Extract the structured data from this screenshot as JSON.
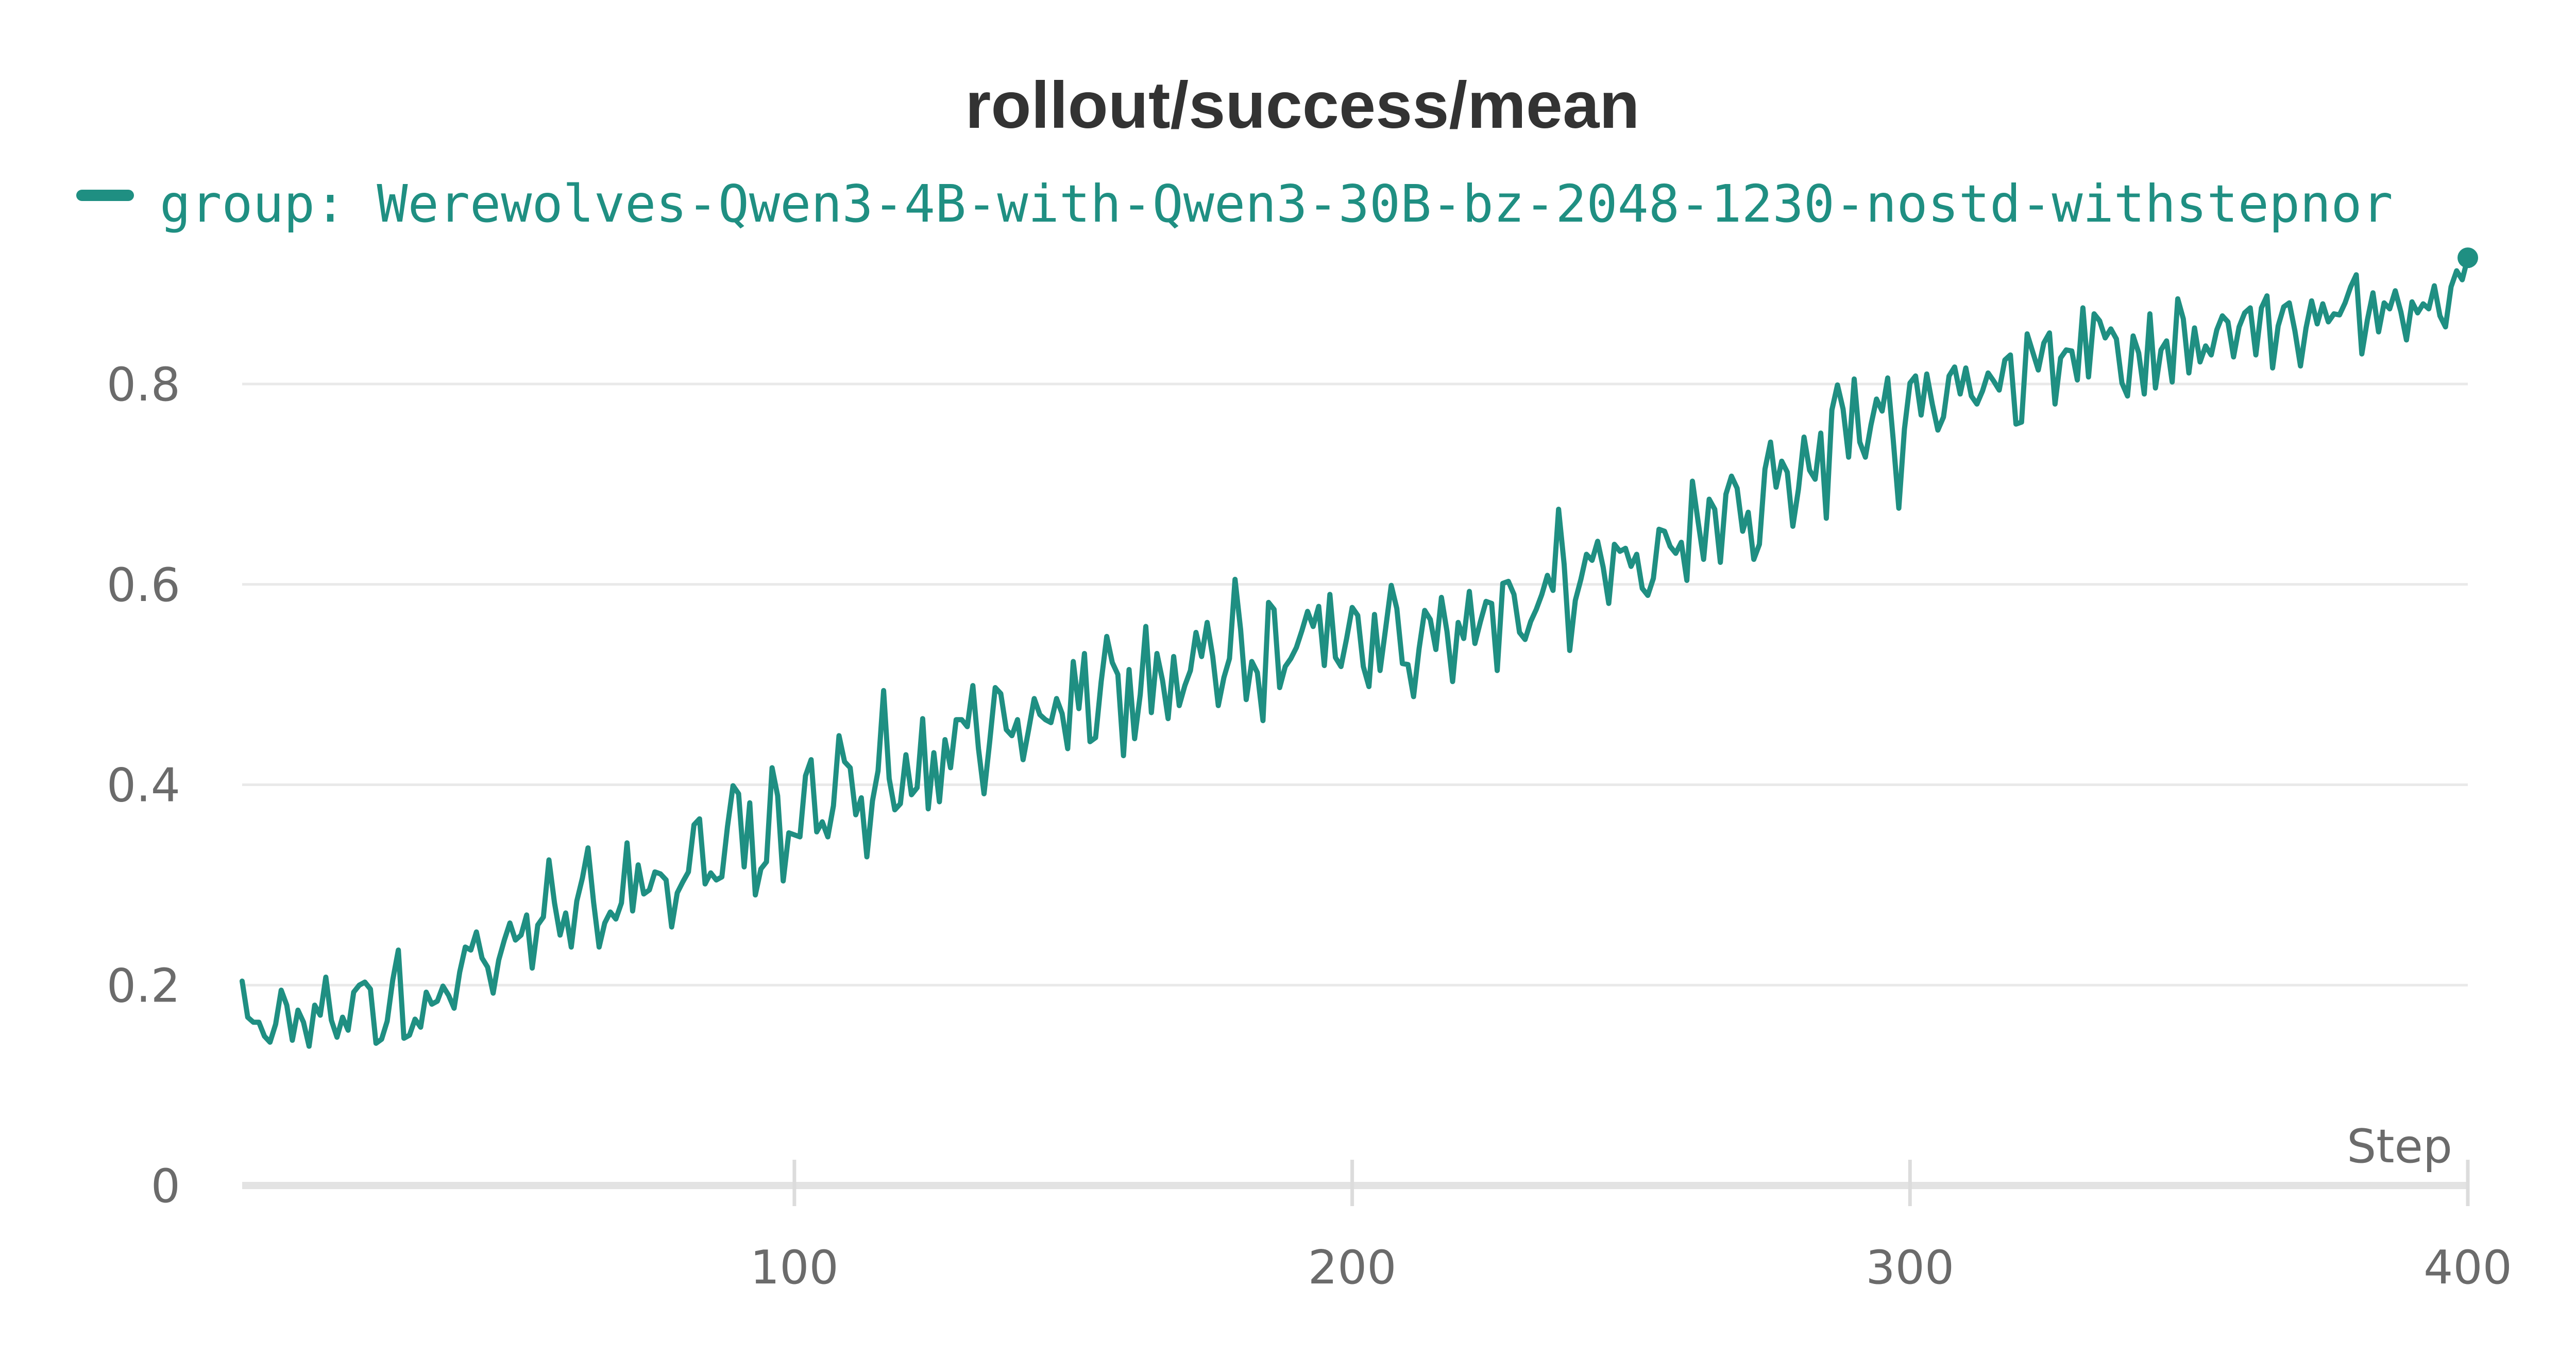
{
  "colors": {
    "series": "#1f8f82",
    "grid": "#e9e9e9",
    "text": "#6b6b6b",
    "title": "#333333"
  },
  "legend": {
    "icon": "legend-line-icon"
  },
  "chart_data": {
    "type": "line",
    "title": "rollout/success/mean",
    "xlabel": "Step",
    "ylabel": "",
    "xlim": [
      1,
      400
    ],
    "ylim": [
      0,
      0.92
    ],
    "x_ticks": [
      100,
      200,
      300,
      400
    ],
    "y_ticks": [
      0,
      0.2,
      0.4,
      0.6,
      0.8
    ],
    "x_tick_labels": [
      "100",
      "200",
      "300",
      "400"
    ],
    "y_tick_labels": [
      "0",
      "0.2",
      "0.4",
      "0.6",
      "0.8"
    ],
    "grid": true,
    "legend_position": "top-left",
    "series": [
      {
        "name": "group: Werewolves-Qwen3-4B-with-Qwen3-30B-bz-2048-1230-nostd-withstepnor",
        "color": "#1f8f82",
        "x_start": 1,
        "x_step": 1,
        "values": [
          0.204,
          0.168,
          0.163,
          0.163,
          0.149,
          0.143,
          0.161,
          0.195,
          0.18,
          0.145,
          0.175,
          0.163,
          0.139,
          0.18,
          0.17,
          0.208,
          0.165,
          0.148,
          0.168,
          0.155,
          0.193,
          0.2,
          0.203,
          0.196,
          0.142,
          0.146,
          0.164,
          0.205,
          0.235,
          0.147,
          0.15,
          0.166,
          0.158,
          0.193,
          0.181,
          0.184,
          0.199,
          0.19,
          0.177,
          0.213,
          0.238,
          0.235,
          0.253,
          0.227,
          0.218,
          0.192,
          0.225,
          0.245,
          0.262,
          0.245,
          0.25,
          0.27,
          0.217,
          0.26,
          0.268,
          0.325,
          0.282,
          0.25,
          0.272,
          0.238,
          0.284,
          0.307,
          0.337,
          0.283,
          0.238,
          0.262,
          0.273,
          0.266,
          0.282,
          0.342,
          0.274,
          0.32,
          0.291,
          0.295,
          0.313,
          0.311,
          0.305,
          0.258,
          0.292,
          0.303,
          0.313,
          0.36,
          0.366,
          0.301,
          0.312,
          0.305,
          0.308,
          0.358,
          0.399,
          0.391,
          0.318,
          0.382,
          0.29,
          0.316,
          0.323,
          0.417,
          0.389,
          0.304,
          0.352,
          0.35,
          0.348,
          0.409,
          0.425,
          0.353,
          0.363,
          0.348,
          0.379,
          0.449,
          0.423,
          0.417,
          0.37,
          0.387,
          0.328,
          0.384,
          0.414,
          0.494,
          0.406,
          0.375,
          0.381,
          0.43,
          0.39,
          0.397,
          0.466,
          0.376,
          0.432,
          0.383,
          0.445,
          0.417,
          0.465,
          0.465,
          0.458,
          0.499,
          0.436,
          0.391,
          0.442,
          0.497,
          0.491,
          0.455,
          0.449,
          0.465,
          0.425,
          0.455,
          0.486,
          0.47,
          0.465,
          0.462,
          0.486,
          0.471,
          0.436,
          0.523,
          0.476,
          0.531,
          0.443,
          0.447,
          0.503,
          0.548,
          0.522,
          0.51,
          0.429,
          0.515,
          0.446,
          0.49,
          0.558,
          0.472,
          0.531,
          0.504,
          0.466,
          0.528,
          0.479,
          0.499,
          0.514,
          0.552,
          0.528,
          0.562,
          0.528,
          0.479,
          0.507,
          0.526,
          0.605,
          0.555,
          0.485,
          0.523,
          0.512,
          0.464,
          0.582,
          0.575,
          0.497,
          0.518,
          0.526,
          0.537,
          0.554,
          0.573,
          0.558,
          0.578,
          0.519,
          0.59,
          0.527,
          0.518,
          0.546,
          0.577,
          0.569,
          0.518,
          0.498,
          0.57,
          0.514,
          0.556,
          0.599,
          0.576,
          0.521,
          0.52,
          0.488,
          0.536,
          0.574,
          0.565,
          0.535,
          0.587,
          0.553,
          0.503,
          0.562,
          0.546,
          0.593,
          0.541,
          0.563,
          0.583,
          0.581,
          0.514,
          0.601,
          0.603,
          0.59,
          0.552,
          0.545,
          0.563,
          0.575,
          0.59,
          0.609,
          0.594,
          0.675,
          0.62,
          0.534,
          0.584,
          0.605,
          0.63,
          0.624,
          0.643,
          0.617,
          0.581,
          0.64,
          0.633,
          0.636,
          0.618,
          0.63,
          0.596,
          0.589,
          0.606,
          0.655,
          0.653,
          0.638,
          0.631,
          0.642,
          0.604,
          0.703,
          0.663,
          0.625,
          0.685,
          0.675,
          0.622,
          0.69,
          0.708,
          0.696,
          0.653,
          0.672,
          0.625,
          0.64,
          0.715,
          0.742,
          0.697,
          0.723,
          0.712,
          0.658,
          0.695,
          0.747,
          0.714,
          0.705,
          0.751,
          0.666,
          0.774,
          0.799,
          0.775,
          0.727,
          0.805,
          0.742,
          0.727,
          0.759,
          0.785,
          0.773,
          0.806,
          0.744,
          0.676,
          0.755,
          0.801,
          0.808,
          0.769,
          0.81,
          0.78,
          0.754,
          0.767,
          0.808,
          0.817,
          0.79,
          0.816,
          0.788,
          0.78,
          0.793,
          0.811,
          0.803,
          0.794,
          0.824,
          0.829,
          0.76,
          0.762,
          0.85,
          0.832,
          0.814,
          0.841,
          0.851,
          0.78,
          0.826,
          0.834,
          0.833,
          0.804,
          0.876,
          0.807,
          0.87,
          0.863,
          0.846,
          0.855,
          0.845,
          0.801,
          0.788,
          0.848,
          0.831,
          0.79,
          0.87,
          0.796,
          0.834,
          0.843,
          0.802,
          0.885,
          0.865,
          0.811,
          0.856,
          0.822,
          0.838,
          0.829,
          0.854,
          0.868,
          0.862,
          0.827,
          0.857,
          0.871,
          0.876,
          0.829,
          0.876,
          0.888,
          0.816,
          0.858,
          0.877,
          0.881,
          0.853,
          0.818,
          0.856,
          0.883,
          0.86,
          0.88,
          0.862,
          0.87,
          0.869,
          0.881,
          0.897,
          0.909,
          0.83,
          0.864,
          0.891,
          0.852,
          0.881,
          0.875,
          0.893,
          0.872,
          0.844,
          0.882,
          0.871,
          0.88,
          0.875,
          0.898,
          0.868,
          0.857,
          0.897,
          0.913,
          0.904,
          0.926
        ]
      }
    ]
  }
}
